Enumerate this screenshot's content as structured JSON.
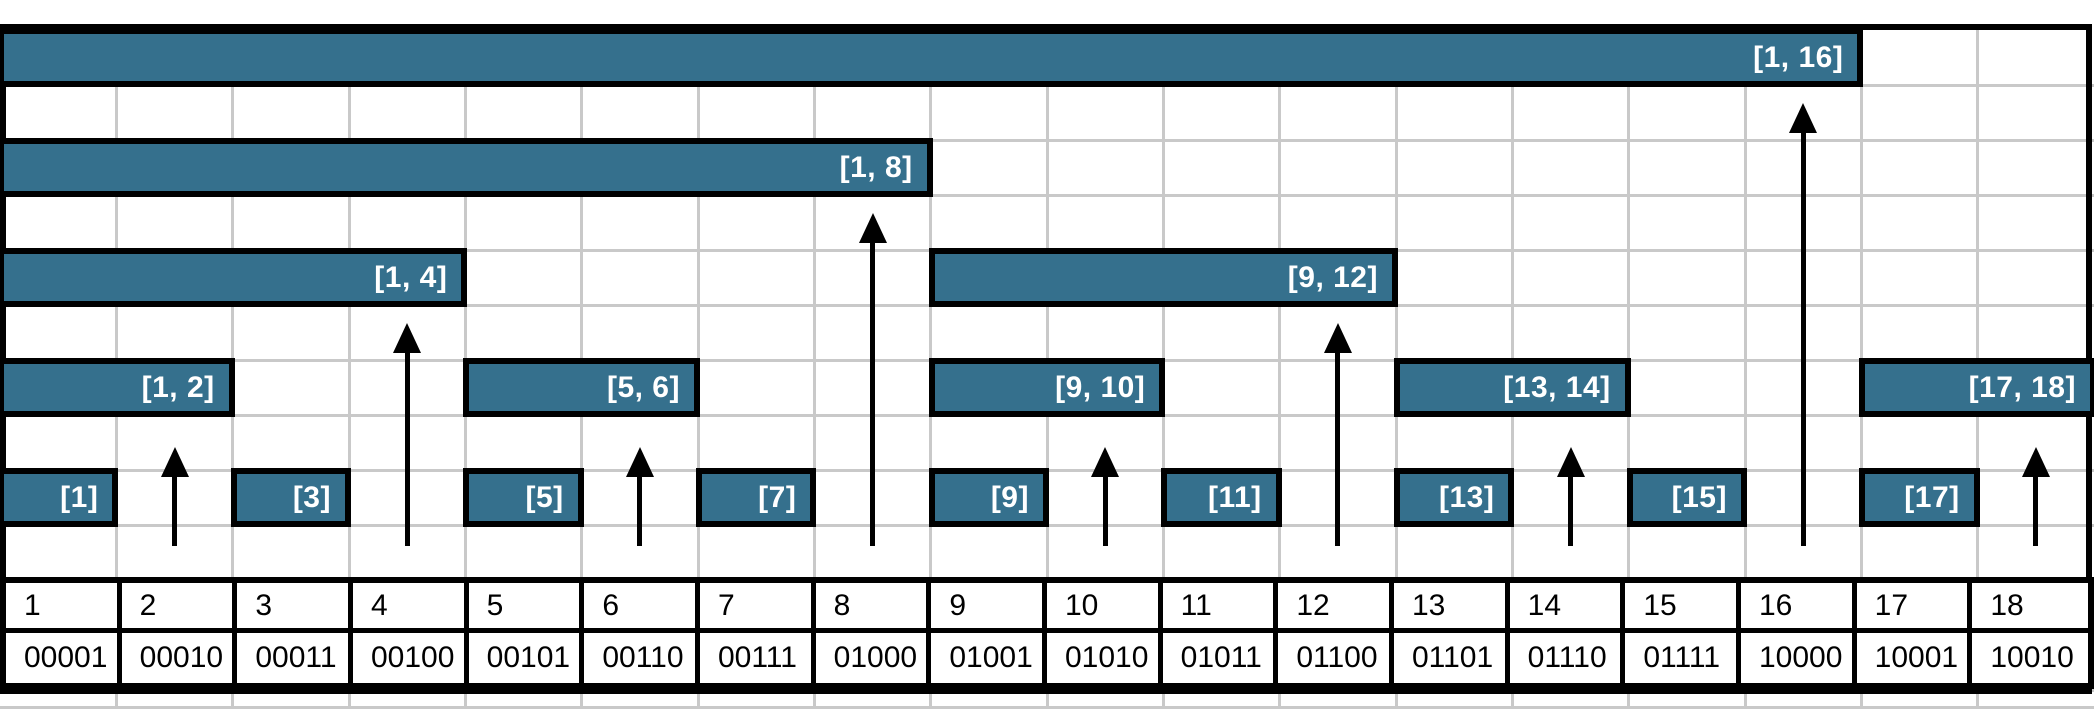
{
  "diagram": {
    "type": "fenwick-tree-interval-diagram",
    "columns": 18,
    "colors": {
      "bar_fill": "#35708d",
      "bar_border": "#000000",
      "bar_label_text": "#ffffff",
      "grid_line": "#c9c9c9",
      "outer_border": "#000000",
      "arrow": "#000000",
      "table_text": "#000000",
      "background": "#ffffff"
    },
    "bars": [
      {
        "label": "[1, 16]",
        "from": 1,
        "to": 16,
        "level": 4
      },
      {
        "label": "[1, 8]",
        "from": 1,
        "to": 8,
        "level": 3
      },
      {
        "label": "[1, 4]",
        "from": 1,
        "to": 4,
        "level": 2
      },
      {
        "label": "[9, 12]",
        "from": 9,
        "to": 12,
        "level": 2
      },
      {
        "label": "[1, 2]",
        "from": 1,
        "to": 2,
        "level": 1
      },
      {
        "label": "[5, 6]",
        "from": 5,
        "to": 6,
        "level": 1
      },
      {
        "label": "[9, 10]",
        "from": 9,
        "to": 10,
        "level": 1
      },
      {
        "label": "[13, 14]",
        "from": 13,
        "to": 14,
        "level": 1
      },
      {
        "label": "[17, 18]",
        "from": 17,
        "to": 18,
        "level": 1
      },
      {
        "label": "[1]",
        "from": 1,
        "to": 1,
        "level": 0
      },
      {
        "label": "[3]",
        "from": 3,
        "to": 3,
        "level": 0
      },
      {
        "label": "[5]",
        "from": 5,
        "to": 5,
        "level": 0
      },
      {
        "label": "[7]",
        "from": 7,
        "to": 7,
        "level": 0
      },
      {
        "label": "[9]",
        "from": 9,
        "to": 9,
        "level": 0
      },
      {
        "label": "[11]",
        "from": 11,
        "to": 11,
        "level": 0
      },
      {
        "label": "[13]",
        "from": 13,
        "to": 13,
        "level": 0
      },
      {
        "label": "[15]",
        "from": 15,
        "to": 15,
        "level": 0
      },
      {
        "label": "[17]",
        "from": 17,
        "to": 17,
        "level": 0
      }
    ],
    "arrows": [
      {
        "col": 2,
        "target": "[1, 2]",
        "target_level": 1
      },
      {
        "col": 4,
        "target": "[1, 4]",
        "target_level": 2
      },
      {
        "col": 6,
        "target": "[5, 6]",
        "target_level": 1
      },
      {
        "col": 8,
        "target": "[1, 8]",
        "target_level": 3
      },
      {
        "col": 10,
        "target": "[9, 10]",
        "target_level": 1
      },
      {
        "col": 12,
        "target": "[9, 12]",
        "target_level": 2
      },
      {
        "col": 14,
        "target": "[13, 14]",
        "target_level": 1
      },
      {
        "col": 16,
        "target": "[1, 16]",
        "target_level": 4
      },
      {
        "col": 18,
        "target": "[17, 18]",
        "target_level": 1
      }
    ],
    "table": {
      "index_row": [
        "1",
        "2",
        "3",
        "4",
        "5",
        "6",
        "7",
        "8",
        "9",
        "10",
        "11",
        "12",
        "13",
        "14",
        "15",
        "16",
        "17",
        "18"
      ],
      "binary_row": [
        "00001",
        "00010",
        "00011",
        "00100",
        "00101",
        "00110",
        "00111",
        "01000",
        "01001",
        "01010",
        "01011",
        "01100",
        "01101",
        "01110",
        "01111",
        "10000",
        "10001",
        "10010"
      ]
    }
  }
}
